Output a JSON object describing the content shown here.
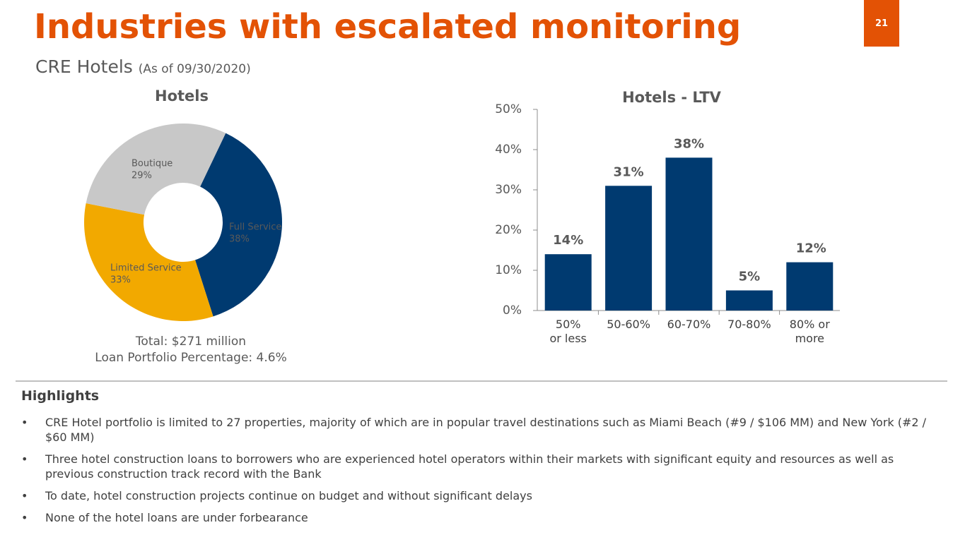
{
  "header": {
    "title": "Industries with escalated monitoring",
    "page_number": "21",
    "subtitle": "CRE Hotels",
    "subtitle_note": "(As of 09/30/2020)"
  },
  "chart_data": [
    {
      "type": "pie",
      "title": "Hotels",
      "donut": true,
      "categories": [
        "Full Service",
        "Limited Service",
        "Boutique"
      ],
      "values": [
        38,
        33,
        29
      ],
      "value_labels": [
        "38%",
        "33%",
        "29%"
      ],
      "colors": [
        "#003a70",
        "#f2a900",
        "#c8c8c8"
      ],
      "notes": [
        "Total: $271 million",
        "Loan Portfolio Percentage: 4.6%"
      ]
    },
    {
      "type": "bar",
      "title": "Hotels - LTV",
      "categories": [
        "50%\nor less",
        "50-60%",
        "60-70%",
        "70-80%",
        "80% or\nmore"
      ],
      "values": [
        14,
        31,
        38,
        5,
        12
      ],
      "value_labels": [
        "14%",
        "31%",
        "38%",
        "5%",
        "12%"
      ],
      "color": "#003a70",
      "ylim": [
        0,
        50
      ],
      "yticks": [
        {
          "value": 0,
          "label": "0%"
        },
        {
          "value": 10,
          "label": "10%"
        },
        {
          "value": 20,
          "label": "20%"
        },
        {
          "value": 30,
          "label": "30%"
        },
        {
          "value": 40,
          "label": "40%"
        },
        {
          "value": 50,
          "label": "50%"
        }
      ]
    }
  ],
  "highlights": {
    "title": "Highlights",
    "items": [
      "CRE Hotel portfolio is limited to 27 properties, majority of which are in popular travel destinations such as Miami Beach (#9 / $106 MM) and New York (#2 / $60 MM)",
      "Three hotel construction loans to borrowers who are experienced hotel operators within their markets with significant equity and resources as well as previous construction track record with the Bank",
      "To date, hotel construction projects continue on budget and without significant delays",
      "None of the hotel loans are under forbearance"
    ]
  }
}
